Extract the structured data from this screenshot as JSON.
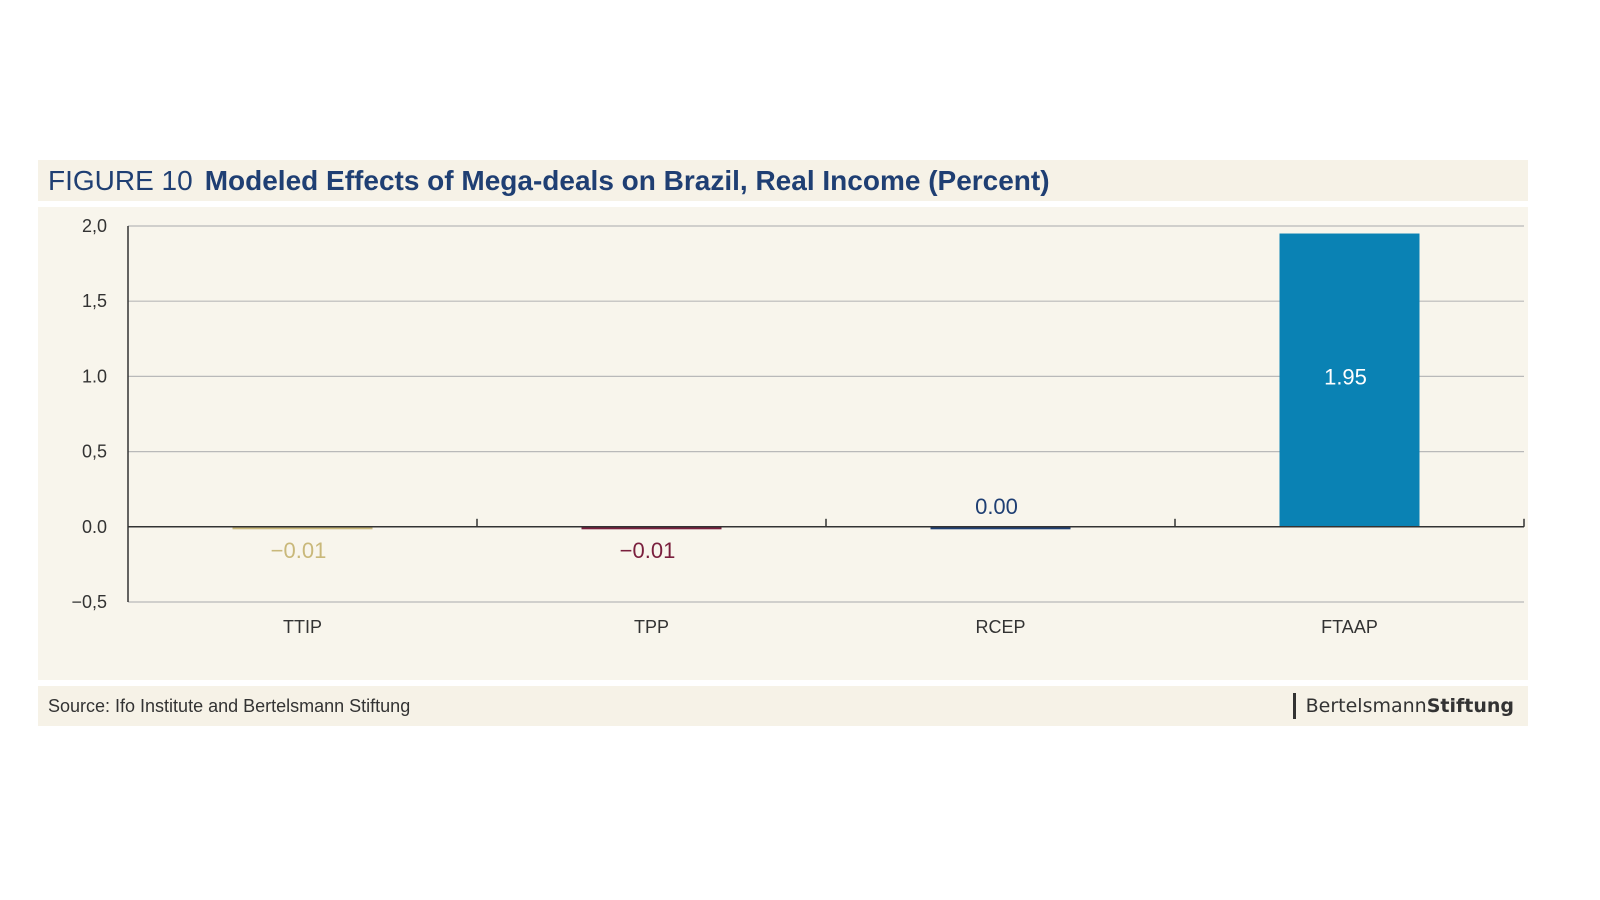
{
  "figure": {
    "label": "FIGURE 10",
    "title": "Modeled Effects of Mega-deals on Brazil, Real Income (Percent)"
  },
  "chart_data": {
    "type": "bar",
    "categories": [
      "TTIP",
      "TPP",
      "RCEP",
      "FTAAP"
    ],
    "values": [
      -0.01,
      -0.01,
      0.0,
      1.95
    ],
    "value_labels": [
      "−0.01",
      "−0.01",
      "0.00",
      "1.95"
    ],
    "colors": [
      "#c9b87a",
      "#7a1f3d",
      "#1f3f73",
      "#0a82b4"
    ],
    "label_colors": [
      "#c9b87a",
      "#7a1f3d",
      "#1f3f73",
      "#ffffff"
    ],
    "ylim": [
      -0.5,
      2.0
    ],
    "yticks": [
      -0.5,
      0.0,
      0.5,
      1.0,
      1.5,
      2.0
    ],
    "ytick_labels": [
      "−0,5",
      "0.0",
      "0,5",
      "1.0",
      "1,5",
      "2,0"
    ],
    "grid": true,
    "xlabel": "",
    "ylabel": ""
  },
  "footer": {
    "source": "Source: Ifo Institute and Bertelsmann Stiftung",
    "logo_regular": "Bertelsmann",
    "logo_bold": "Stiftung"
  }
}
